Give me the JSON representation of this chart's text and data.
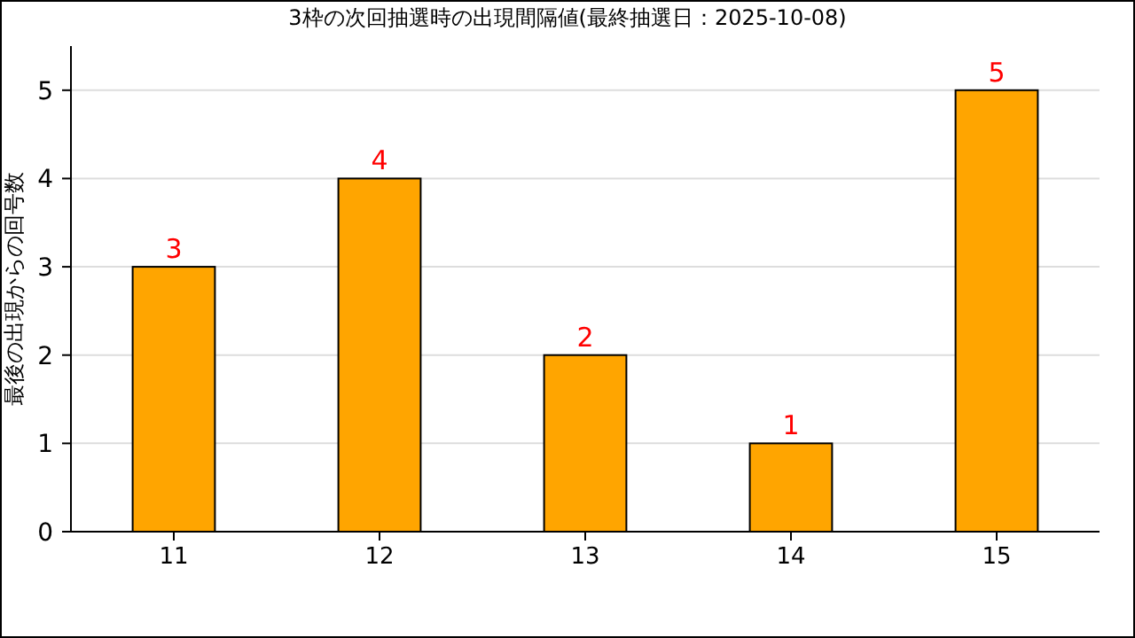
{
  "chart_data": {
    "type": "bar",
    "title": "3枠の次回抽選時の出現間隔値(最終抽選日：2025-10-08)",
    "ylabel": "最後の出現からの回号数",
    "categories": [
      "11",
      "12",
      "13",
      "14",
      "15"
    ],
    "values": [
      3,
      4,
      2,
      1,
      5
    ],
    "color": "#ffa500",
    "ylim": [
      0,
      5.5
    ],
    "yticks": [
      0,
      1,
      2,
      3,
      4,
      5
    ],
    "grid": "y",
    "data_labels": true
  }
}
